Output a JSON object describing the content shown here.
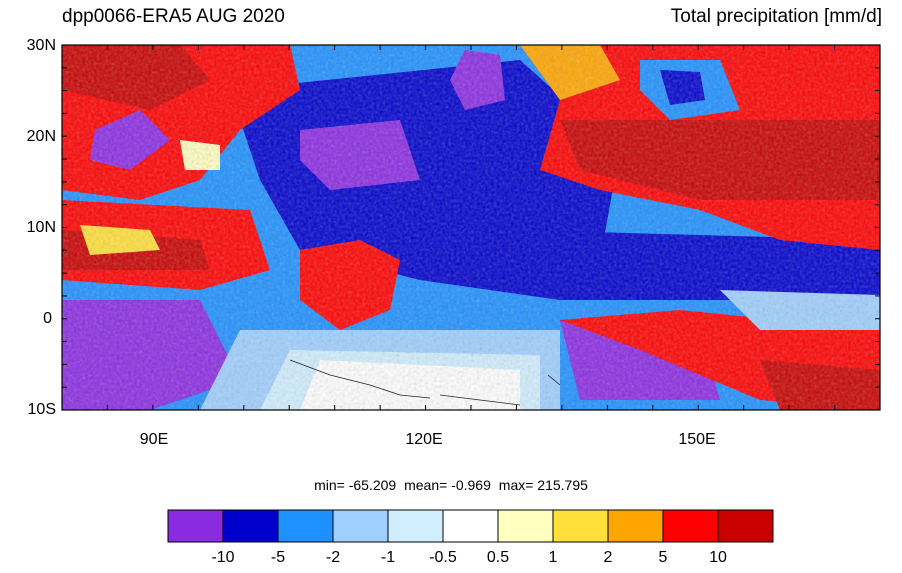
{
  "header": {
    "title_left": "dpp0066-ERA5 AUG 2020",
    "title_right": "Total precipitation [mm/d]"
  },
  "map": {
    "lat_labels": [
      "30N",
      "20N",
      "10N",
      "0",
      "10S"
    ],
    "lon_labels": [
      "90E",
      "120E",
      "150E"
    ],
    "colors": {
      "deep_purple": "#8a2be2",
      "blue": "#0000cd",
      "mid_blue": "#1e90ff",
      "light_blue": "#a0cfff",
      "pale_blue": "#d0eeff",
      "white": "#ffffff",
      "pale_yellow": "#ffffc0",
      "yellow": "#ffdf3a",
      "orange": "#ffa500",
      "red": "#ff0000",
      "dark_red": "#c80000"
    }
  },
  "stats": {
    "min_text": "min= -65.209",
    "mean_text": "mean=  -0.969",
    "max_text": "max= 215.795"
  },
  "colorbar": {
    "labels": [
      "-10",
      "-5",
      "-2",
      "-1",
      "-0.5",
      "0.5",
      "1",
      "2",
      "5",
      "10"
    ],
    "colors": [
      "#8a2be2",
      "#0000cd",
      "#1e90ff",
      "#a0cfff",
      "#d0eeff",
      "#ffffff",
      "#ffffc0",
      "#ffdf3a",
      "#ffa500",
      "#ff0000",
      "#c80000"
    ]
  }
}
